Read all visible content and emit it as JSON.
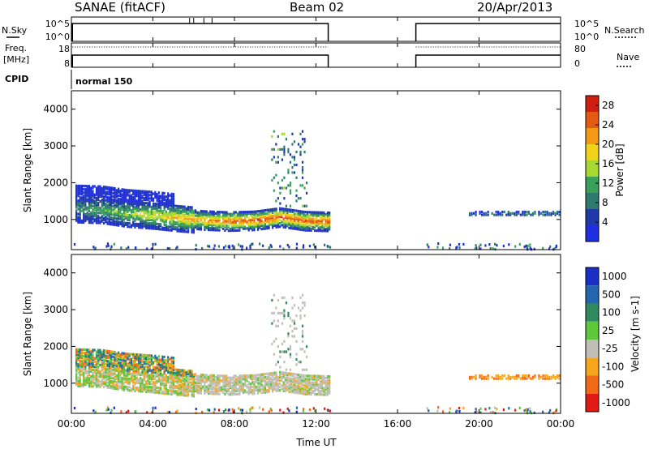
{
  "header": {
    "station": "SANAE (fitACF)",
    "beam": "Beam 02",
    "date": "20/Apr/2013"
  },
  "side_labels": {
    "nsky": "N.Sky",
    "freq_line1": "Freq.",
    "freq_line2": "[MHz]",
    "cpid": "CPID",
    "nsearch": "N.Search",
    "nave": "Nave"
  },
  "top_axes": {
    "nsky_ticks": [
      "10^5",
      "10^0"
    ],
    "nsearch_ticks": [
      "10^5",
      "10^0"
    ],
    "freq_ticks": [
      "18",
      "8"
    ],
    "nave_ticks": [
      "80",
      "0"
    ]
  },
  "cpid_value": "normal 150",
  "xaxis": {
    "label": "Time UT",
    "ticks": [
      "00:00",
      "04:00",
      "08:00",
      "12:00",
      "16:00",
      "20:00",
      "00:00"
    ]
  },
  "colors": {
    "power": [
      "#1f2ee0",
      "#1f3aa8",
      "#2e7a6e",
      "#3aa15a",
      "#a8d832",
      "#f0d21a",
      "#f29a16",
      "#e45a12",
      "#d01e10"
    ],
    "velocity": [
      "#e01a14",
      "#f06a18",
      "#f5a61c",
      "#bfbfb7",
      "#5cc83a",
      "#2f8a5e",
      "#2266b0",
      "#1a2fc8"
    ]
  },
  "chart_data": [
    {
      "type": "heatmap",
      "panel": "power",
      "ylabel": "Slant Range [km]",
      "yticks": [
        "1000",
        "2000",
        "3000",
        "4000"
      ],
      "ylim": [
        180,
        4500
      ],
      "xlim_hours": [
        0,
        24
      ],
      "colorbar": {
        "label": "Power [dB]",
        "ticks": [
          "4",
          "8",
          "12",
          "16",
          "20",
          "24",
          "28"
        ],
        "range": [
          0,
          30
        ]
      },
      "main_echo": {
        "t_start_h": 0.2,
        "t_end_h": 12.7,
        "center_km": [
          1320,
          1300,
          1200,
          1150,
          1080,
          1020,
          990,
          1010,
          1100,
          1000,
          980
        ],
        "power_db_peak": 24
      },
      "late_echo": {
        "t_start_h": 19.5,
        "t_end_h": 24.0,
        "center_km": 1220
      },
      "tall_echo": {
        "t_start_h": 9.8,
        "t_end_h": 11.5,
        "top_km": 3500
      }
    },
    {
      "type": "heatmap",
      "panel": "velocity",
      "ylabel": "Slant Range [km]",
      "yticks": [
        "1000",
        "2000",
        "3000",
        "4000"
      ],
      "ylim": [
        180,
        4500
      ],
      "xlim_hours": [
        0,
        24
      ],
      "colorbar": {
        "label": "Velocity [m s-1]",
        "ticks": [
          "1000",
          "500",
          "100",
          "25",
          "-25",
          "-100",
          "-500",
          "-1000"
        ],
        "range": [
          -1000,
          1000
        ]
      }
    }
  ]
}
